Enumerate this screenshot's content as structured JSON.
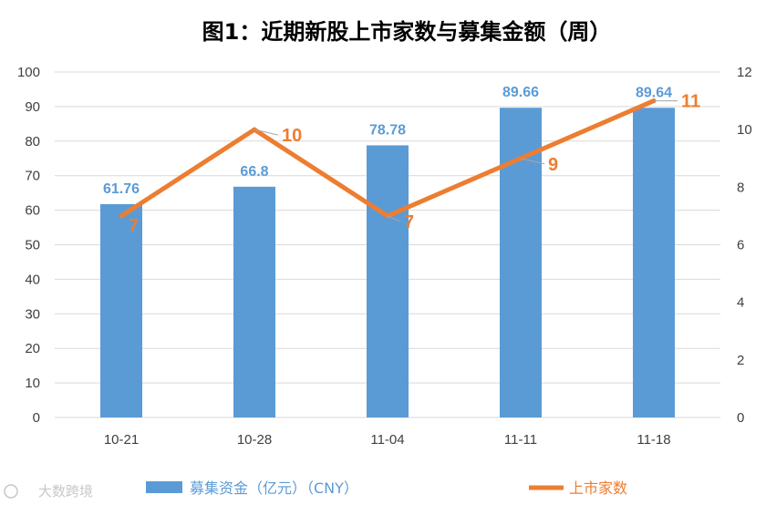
{
  "chart_data": {
    "type": "bar+line",
    "title": "图1：近期新股上市家数与募集金额（周）",
    "categories": [
      "10-21",
      "10-28",
      "11-04",
      "11-11",
      "11-18"
    ],
    "series": [
      {
        "name": "募集资金（亿元）（CNY）",
        "type": "bar",
        "axis": "left",
        "color": "#5b9bd5",
        "values": [
          61.76,
          66.8,
          78.78,
          89.66,
          89.64
        ],
        "labels": [
          "61.76",
          "66.8",
          "78.78",
          "89.66",
          "89.64"
        ]
      },
      {
        "name": "上市家数",
        "type": "line",
        "axis": "right",
        "color": "#ed7d31",
        "values": [
          7,
          10,
          7,
          9,
          11
        ],
        "labels": [
          "7",
          "10",
          "7",
          "9",
          "11"
        ]
      }
    ],
    "y_left": {
      "min": 0,
      "max": 100,
      "step": 10,
      "ticks": [
        "0",
        "10",
        "20",
        "30",
        "40",
        "50",
        "60",
        "70",
        "80",
        "90",
        "100"
      ]
    },
    "y_right": {
      "min": 0,
      "max": 12,
      "step": 2,
      "ticks": [
        "0",
        "2",
        "4",
        "6",
        "8",
        "10",
        "12"
      ]
    },
    "grid": true,
    "legend_position": "bottom"
  },
  "watermark": {
    "text": "大数跨境"
  }
}
